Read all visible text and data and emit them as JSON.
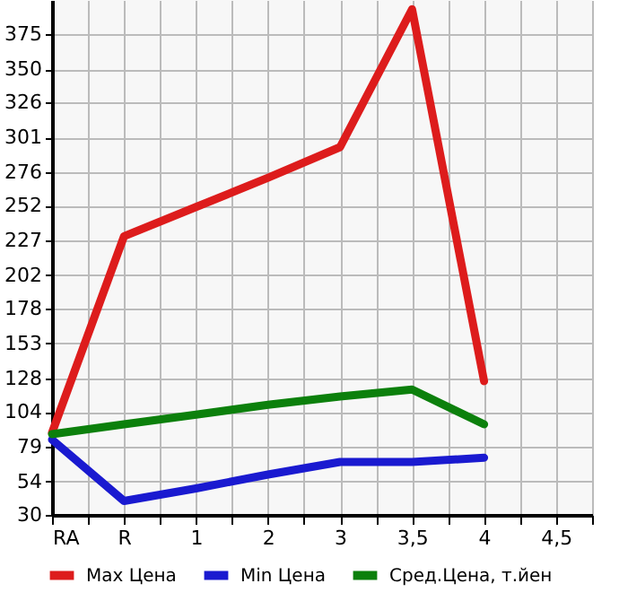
{
  "chart_data": {
    "type": "line",
    "categories": [
      "RA",
      "R",
      "1",
      "2",
      "3",
      "3,5",
      "4",
      "4,5"
    ],
    "series": [
      {
        "name": "Max Цена",
        "color": "#dd1c1c",
        "values": [
          89,
          230,
          251,
          272,
          294,
          393,
          126,
          null
        ]
      },
      {
        "name": "Min Цена",
        "color": "#1a1ad0",
        "values": [
          84,
          40,
          49,
          59,
          68,
          68,
          71,
          null
        ]
      },
      {
        "name": "Сред.Цена, т.йен",
        "color": "#0c800c",
        "values": [
          88,
          95,
          102,
          109,
          115,
          120,
          95,
          null
        ]
      }
    ],
    "ylim": [
      30,
      399.6
    ],
    "yticks": [
      30,
      54,
      79,
      104,
      128,
      153,
      178,
      202,
      227,
      252,
      276,
      301,
      326,
      350,
      375
    ],
    "grid": true,
    "legend": "bottom",
    "marker": "none",
    "line_style": "solid"
  }
}
